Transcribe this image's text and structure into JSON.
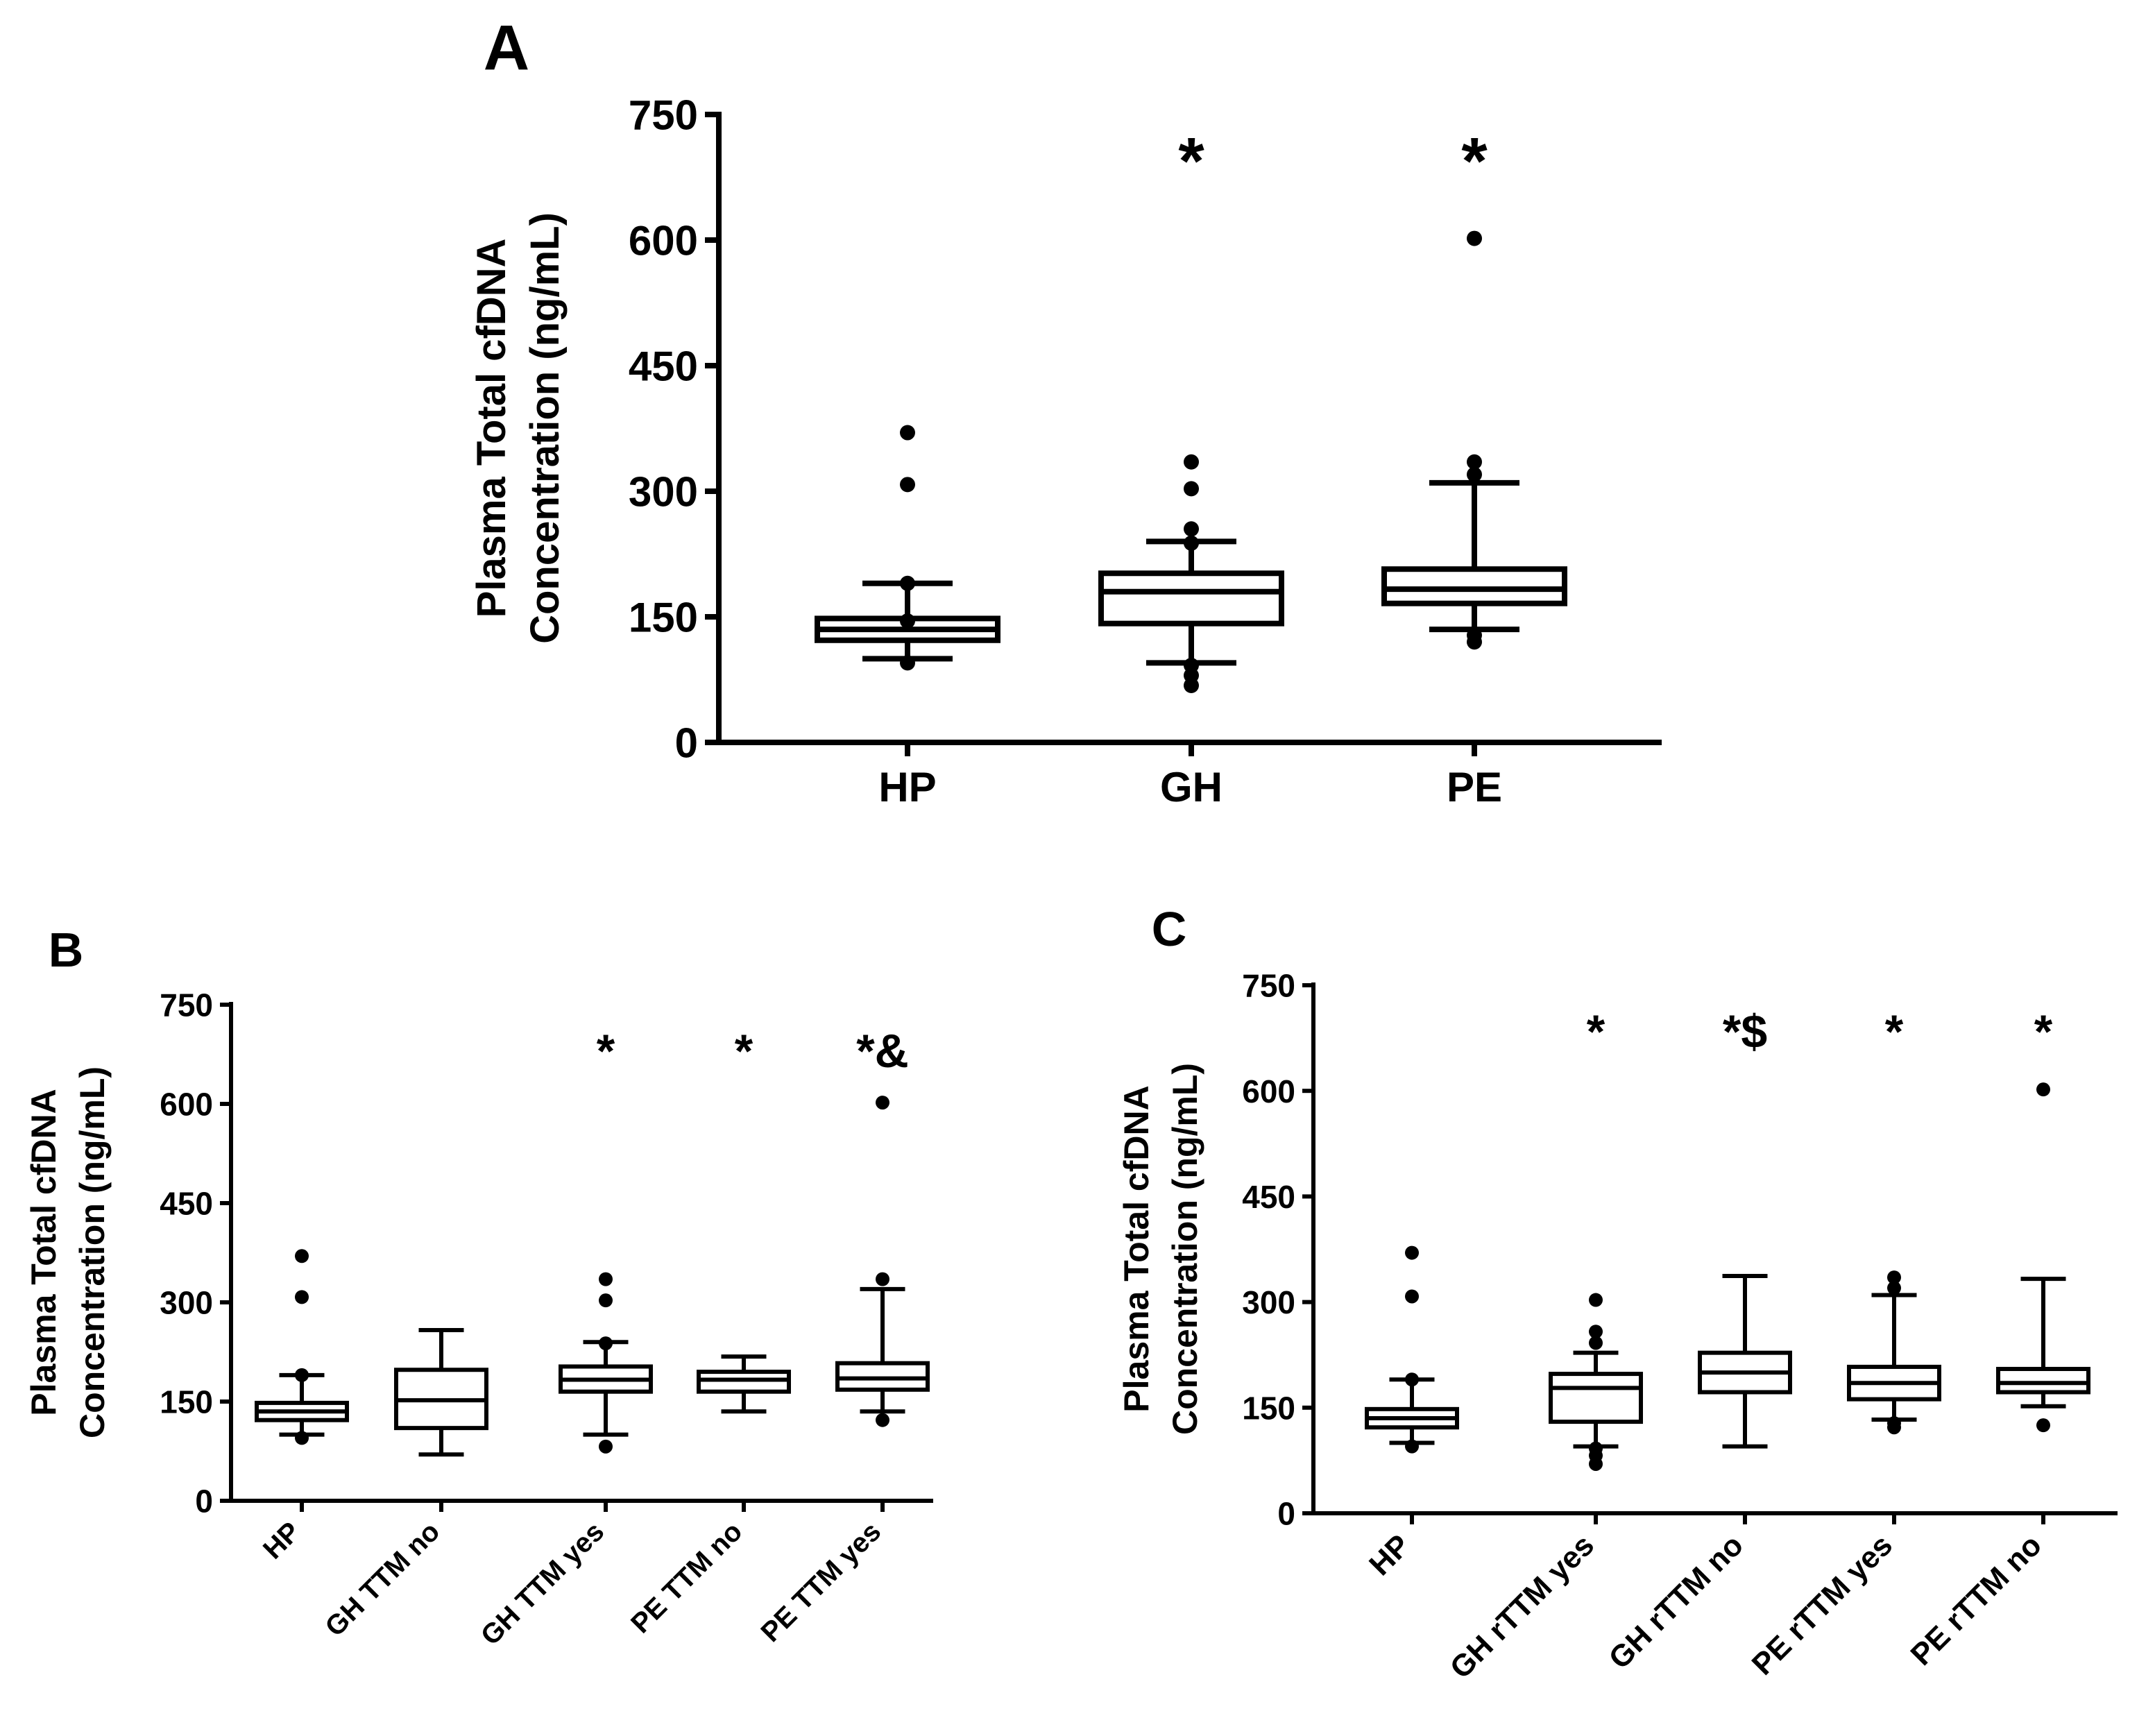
{
  "colors": {
    "ink": "#000000",
    "background": "#ffffff"
  },
  "y_axis_label_line1": "Plasma Total cfDNA",
  "y_axis_label_line2": "Concentration (ng/mL)",
  "chart_data": [
    {
      "panel": "A",
      "type": "box",
      "title": "A",
      "ylabel": "Plasma Total cfDNA Concentration (ng/mL)",
      "ylim": [
        0,
        750
      ],
      "yticks": [
        0,
        150,
        300,
        450,
        600,
        750
      ],
      "categories": [
        "HP",
        "GH",
        "PE"
      ],
      "boxes": [
        {
          "name": "HP",
          "whisker_low": 100,
          "q1": 122,
          "median": 135,
          "q3": 148,
          "whisker_high": 190,
          "outliers": [
            95,
            370,
            308,
            190,
            145
          ],
          "annotation": ""
        },
        {
          "name": "GH",
          "whisker_low": 95,
          "q1": 142,
          "median": 180,
          "q3": 202,
          "whisker_high": 240,
          "outliers": [
            68,
            80,
            92,
            335,
            303,
            255,
            238
          ],
          "annotation": "*"
        },
        {
          "name": "PE",
          "whisker_low": 135,
          "q1": 166,
          "median": 183,
          "q3": 207,
          "whisker_high": 310,
          "outliers": [
            120,
            128,
            320,
            335,
            602
          ],
          "annotation": "*"
        }
      ]
    },
    {
      "panel": "B",
      "type": "box",
      "title": "B",
      "ylabel": "Plasma Total cfDNA Concentration (ng/mL)",
      "ylim": [
        0,
        750
      ],
      "yticks": [
        0,
        150,
        300,
        450,
        600,
        750
      ],
      "categories": [
        "HP",
        "GH TTM no",
        "GH TTM yes",
        "PE TTM no",
        "PE TTM yes"
      ],
      "boxes": [
        {
          "name": "HP",
          "whisker_low": 100,
          "q1": 122,
          "median": 135,
          "q3": 148,
          "whisker_high": 190,
          "outliers": [
            95,
            370,
            308,
            190
          ],
          "annotation": ""
        },
        {
          "name": "GH TTM no",
          "whisker_low": 70,
          "q1": 110,
          "median": 152,
          "q3": 198,
          "whisker_high": 258,
          "outliers": [],
          "annotation": ""
        },
        {
          "name": "GH TTM yes",
          "whisker_low": 100,
          "q1": 165,
          "median": 183,
          "q3": 203,
          "whisker_high": 240,
          "outliers": [
            82,
            335,
            303,
            238
          ],
          "annotation": "*"
        },
        {
          "name": "PE TTM no",
          "whisker_low": 135,
          "q1": 165,
          "median": 183,
          "q3": 195,
          "whisker_high": 218,
          "outliers": [],
          "annotation": "*"
        },
        {
          "name": "PE TTM yes",
          "whisker_low": 135,
          "q1": 168,
          "median": 185,
          "q3": 208,
          "whisker_high": 320,
          "outliers": [
            122,
            335,
            602
          ],
          "annotation": "*&"
        }
      ]
    },
    {
      "panel": "C",
      "type": "box",
      "title": "C",
      "ylabel": "Plasma Total cfDNA Concentration (ng/mL)",
      "ylim": [
        0,
        750
      ],
      "yticks": [
        0,
        150,
        300,
        450,
        600,
        750
      ],
      "categories": [
        "HP",
        "GH rTTM yes",
        "GH rTTM no",
        "PE rTTM yes",
        "PE rTTM no"
      ],
      "boxes": [
        {
          "name": "HP",
          "whisker_low": 100,
          "q1": 122,
          "median": 135,
          "q3": 148,
          "whisker_high": 190,
          "outliers": [
            95,
            370,
            308,
            190
          ],
          "annotation": ""
        },
        {
          "name": "GH rTTM yes",
          "whisker_low": 95,
          "q1": 130,
          "median": 178,
          "q3": 198,
          "whisker_high": 228,
          "outliers": [
            70,
            82,
            92,
            303,
            258,
            242
          ],
          "annotation": "*"
        },
        {
          "name": "GH rTTM no",
          "whisker_low": 95,
          "q1": 172,
          "median": 200,
          "q3": 228,
          "whisker_high": 337,
          "outliers": [],
          "annotation": "*$"
        },
        {
          "name": "PE rTTM yes",
          "whisker_low": 133,
          "q1": 162,
          "median": 185,
          "q3": 208,
          "whisker_high": 310,
          "outliers": [
            122,
            128,
            335,
            320
          ],
          "annotation": "*"
        },
        {
          "name": "PE rTTM no",
          "whisker_low": 152,
          "q1": 172,
          "median": 185,
          "q3": 205,
          "whisker_high": 333,
          "outliers": [
            125,
            602
          ],
          "annotation": "*"
        }
      ]
    }
  ]
}
